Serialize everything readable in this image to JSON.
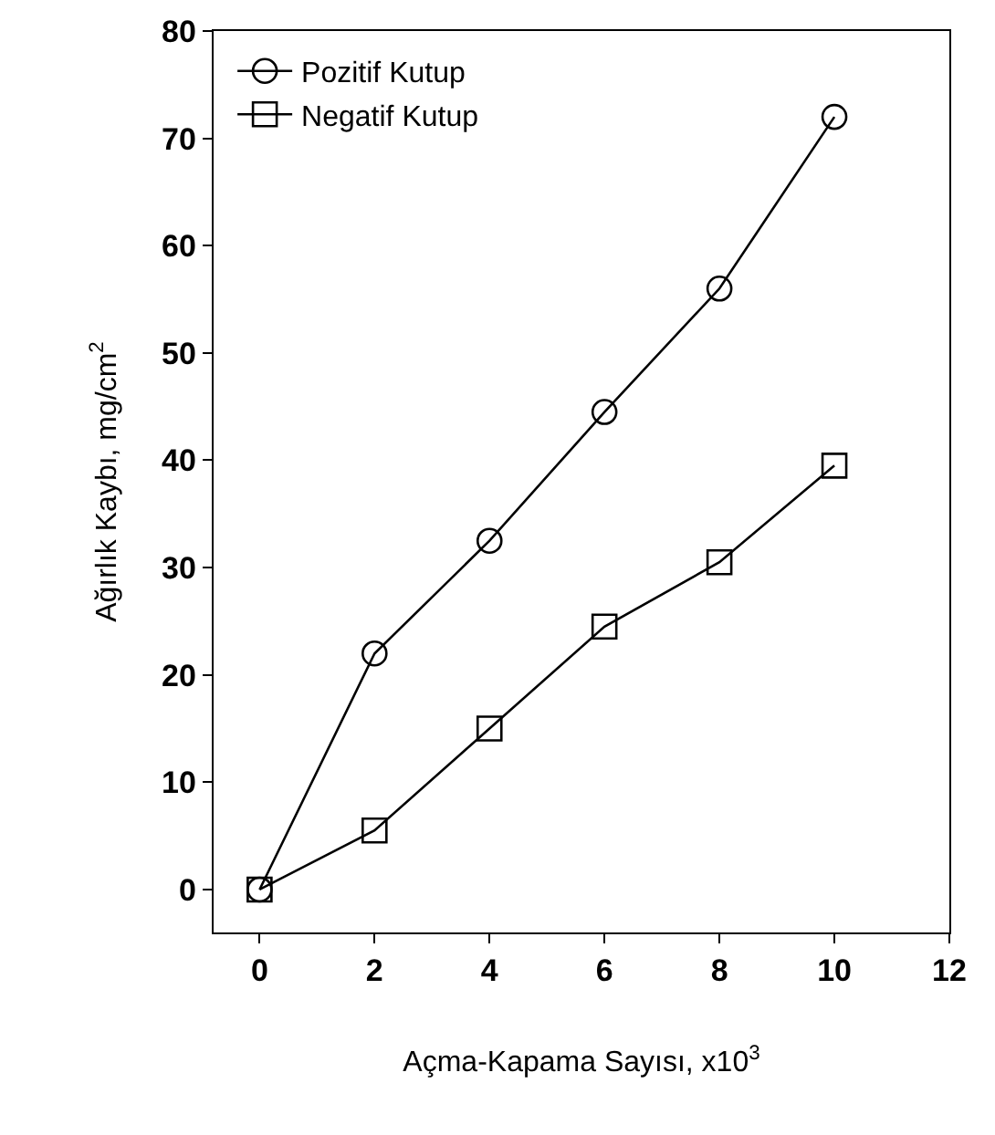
{
  "chart_data": {
    "type": "line",
    "xlabel": "Açma-Kapama Sayısı, x10$^{3}$",
    "ylabel": "Ağırlık Kaybı, mg/cm$^{2}$",
    "x": [
      0,
      2,
      4,
      6,
      8,
      10
    ],
    "series": [
      {
        "name": "Pozitif Kutup",
        "color": "#000000",
        "marker": "circle",
        "values": [
          0,
          22,
          32.5,
          44.5,
          56,
          72
        ]
      },
      {
        "name": "Negatif Kutup",
        "color": "#000000",
        "marker": "square",
        "values": [
          0,
          5.5,
          15,
          24.5,
          30.5,
          39.5
        ]
      }
    ],
    "xlim": [
      -0.8,
      12
    ],
    "xticks": [
      0,
      2,
      4,
      6,
      8,
      10,
      12
    ],
    "ylim": [
      -4,
      80
    ],
    "yticks": [
      0,
      10,
      20,
      30,
      40,
      50,
      60,
      70,
      80
    ],
    "grid": false,
    "legend": "top left",
    "line_style": "solid"
  }
}
